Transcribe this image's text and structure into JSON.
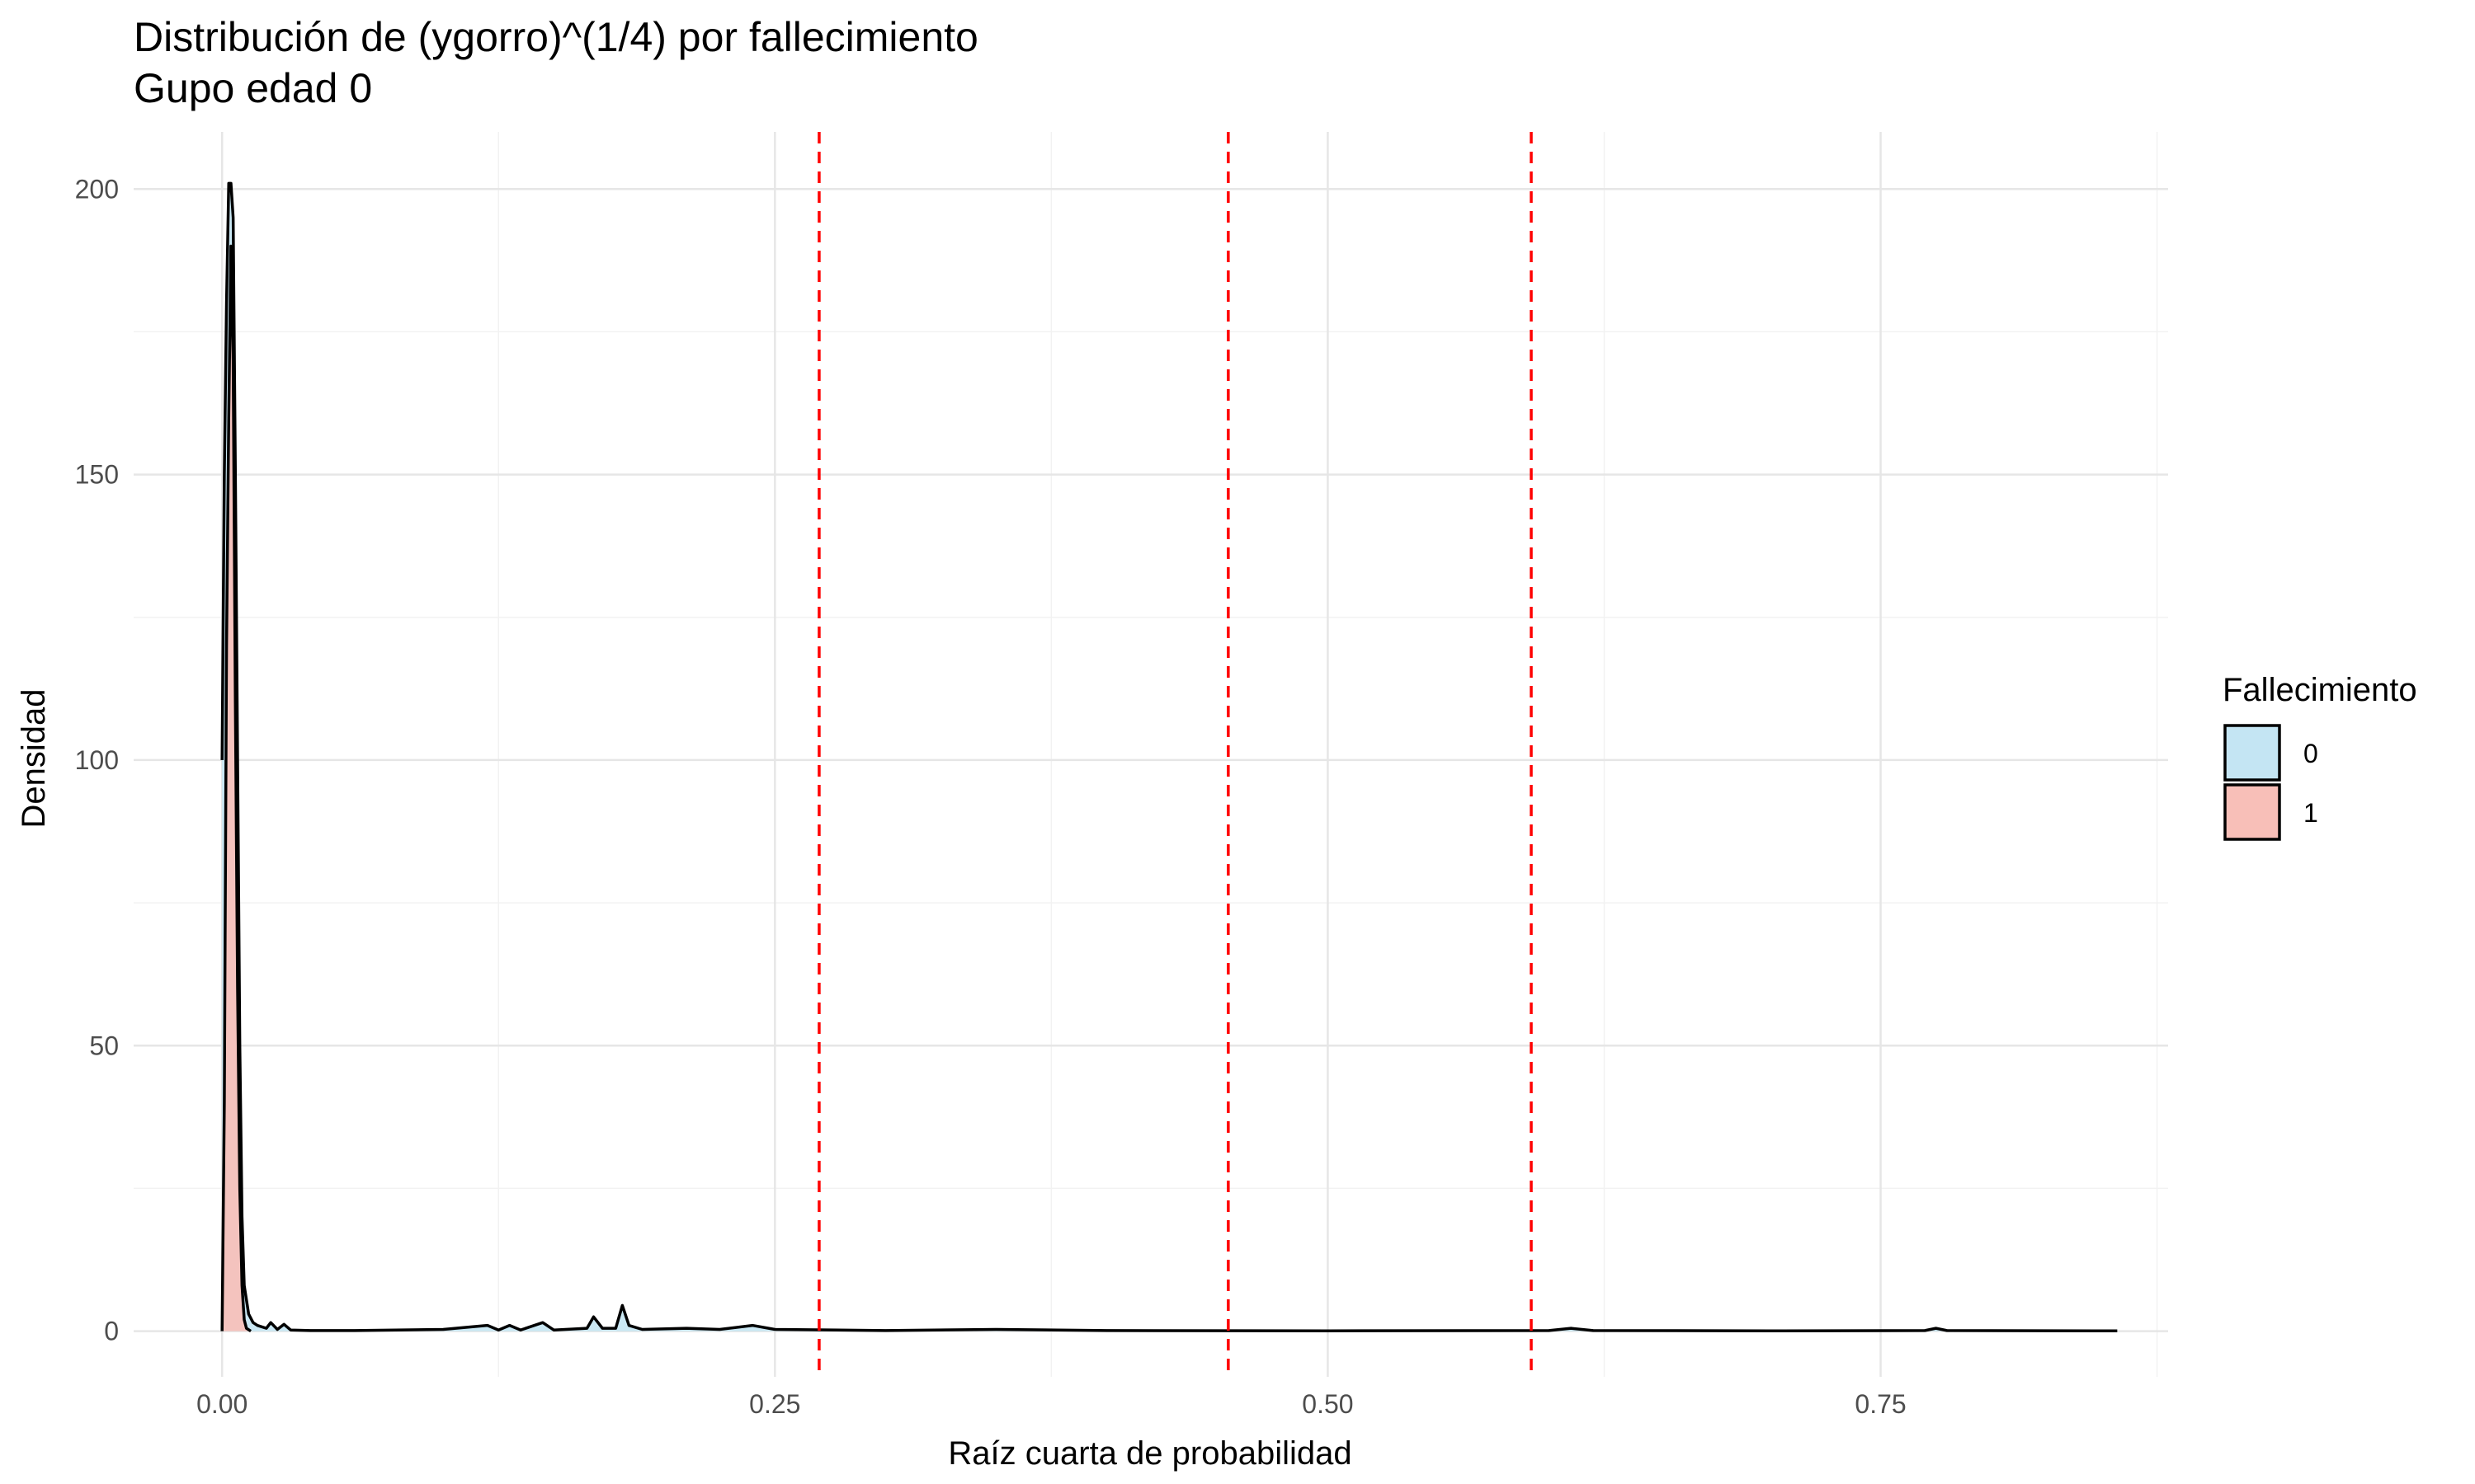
{
  "chart_data": {
    "type": "area",
    "title": "Distribución de (ygorro)^(1/4) por fallecimiento",
    "subtitle": "Gupo edad 0",
    "xlabel": "Raíz cuarta de probabilidad",
    "ylabel": "Densidad",
    "xlim": [
      -0.04,
      0.88
    ],
    "ylim": [
      -8,
      210
    ],
    "x_ticks": [
      0.0,
      0.25,
      0.5,
      0.75
    ],
    "x_tick_labels": [
      "0.00",
      "0.25",
      "0.50",
      "0.75"
    ],
    "y_ticks": [
      0,
      50,
      100,
      150,
      200
    ],
    "y_tick_labels": [
      "0",
      "50",
      "100",
      "150",
      "200"
    ],
    "grid": true,
    "legend": {
      "title": "Fallecimiento",
      "placement": "right"
    },
    "series": [
      {
        "name": "0",
        "fill": "#c4e5f3",
        "points": [
          [
            0.0,
            100
          ],
          [
            0.001,
            150
          ],
          [
            0.002,
            180
          ],
          [
            0.003,
            201
          ],
          [
            0.004,
            201
          ],
          [
            0.005,
            195
          ],
          [
            0.006,
            150
          ],
          [
            0.007,
            100
          ],
          [
            0.008,
            50
          ],
          [
            0.009,
            20
          ],
          [
            0.01,
            8
          ],
          [
            0.012,
            3
          ],
          [
            0.014,
            1.5
          ],
          [
            0.016,
            1
          ],
          [
            0.02,
            0.5
          ],
          [
            0.022,
            1.5
          ],
          [
            0.025,
            0.3
          ],
          [
            0.028,
            1.2
          ],
          [
            0.031,
            0.2
          ],
          [
            0.04,
            0.1
          ],
          [
            0.06,
            0.1
          ],
          [
            0.1,
            0.3
          ],
          [
            0.12,
            1
          ],
          [
            0.125,
            0.2
          ],
          [
            0.13,
            1
          ],
          [
            0.135,
            0.2
          ],
          [
            0.145,
            1.5
          ],
          [
            0.15,
            0.2
          ],
          [
            0.165,
            0.5
          ],
          [
            0.168,
            2.5
          ],
          [
            0.172,
            0.5
          ],
          [
            0.178,
            0.5
          ],
          [
            0.181,
            4.5
          ],
          [
            0.184,
            1
          ],
          [
            0.19,
            0.3
          ],
          [
            0.21,
            0.5
          ],
          [
            0.225,
            0.3
          ],
          [
            0.24,
            1
          ],
          [
            0.25,
            0.3
          ],
          [
            0.3,
            0.1
          ],
          [
            0.35,
            0.3
          ],
          [
            0.4,
            0.1
          ],
          [
            0.5,
            0.05
          ],
          [
            0.6,
            0.1
          ],
          [
            0.61,
            0.5
          ],
          [
            0.62,
            0.1
          ],
          [
            0.7,
            0.05
          ],
          [
            0.77,
            0.1
          ],
          [
            0.775,
            0.5
          ],
          [
            0.78,
            0.1
          ],
          [
            0.857,
            0.05
          ]
        ]
      },
      {
        "name": "1",
        "fill": "#f8bfb8",
        "points": [
          [
            0.0,
            0
          ],
          [
            0.001,
            40
          ],
          [
            0.002,
            120
          ],
          [
            0.003,
            160
          ],
          [
            0.004,
            190
          ],
          [
            0.005,
            170
          ],
          [
            0.006,
            110
          ],
          [
            0.007,
            60
          ],
          [
            0.008,
            25
          ],
          [
            0.009,
            8
          ],
          [
            0.01,
            2
          ],
          [
            0.011,
            0.5
          ],
          [
            0.013,
            0
          ]
        ]
      }
    ],
    "reference_lines": {
      "orientation": "vertical",
      "style": "dashed",
      "color": "#ff0000",
      "x": [
        0.27,
        0.455,
        0.592
      ]
    }
  }
}
